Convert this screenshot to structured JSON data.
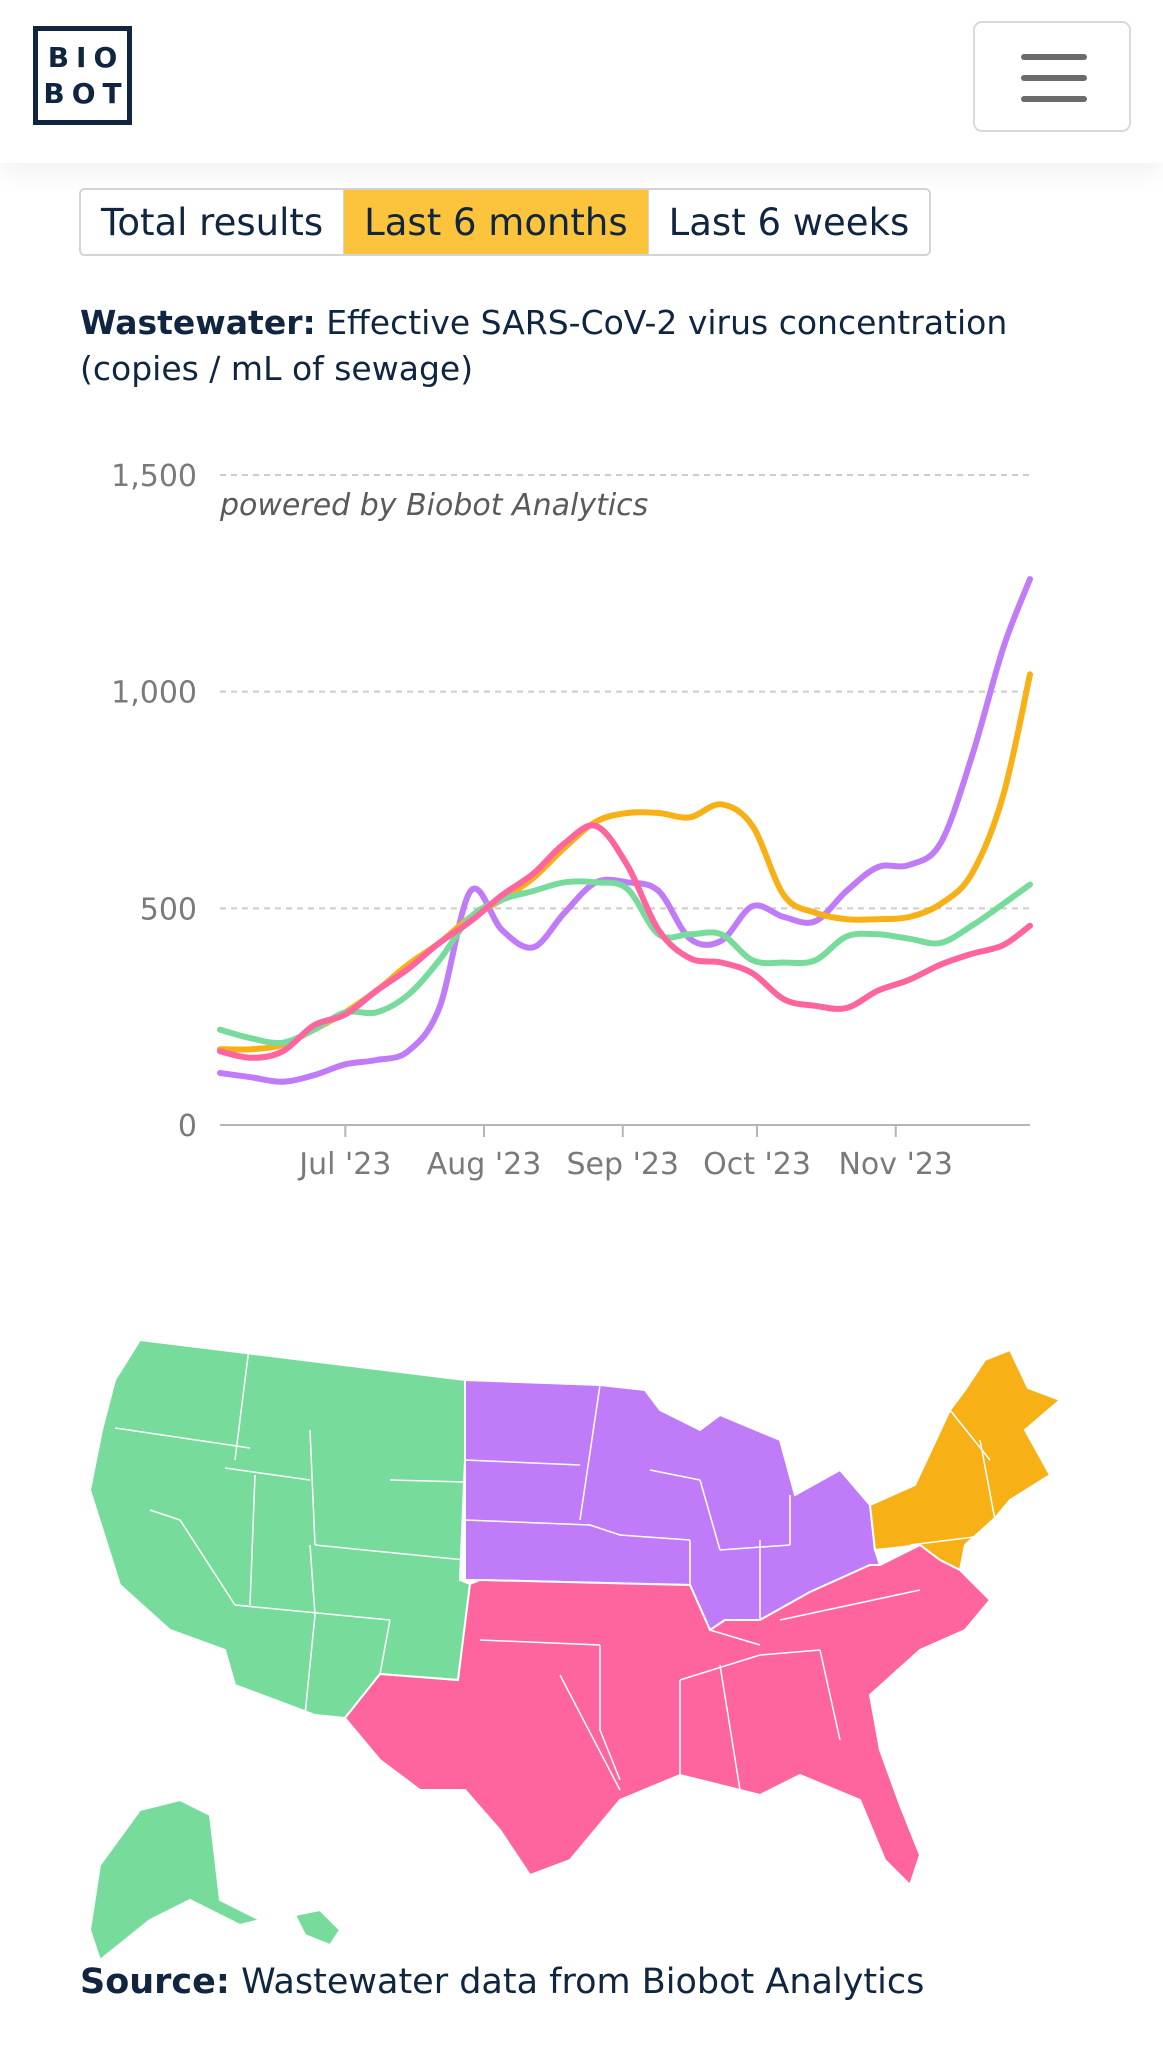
{
  "header": {
    "logo_line1": "BIO",
    "logo_line2": "BOT",
    "menu_icon": "hamburger-menu-icon"
  },
  "tabs": [
    {
      "label": "Total results",
      "active": false
    },
    {
      "label": "Last 6 months",
      "active": true
    },
    {
      "label": "Last 6 weeks",
      "active": false
    }
  ],
  "title": {
    "bold": "Wastewater:",
    "text": "Effective SARS-CoV-2 virus concentration (copies / mL of sewage)"
  },
  "watermark": "powered by Biobot Analytics",
  "chart_data": {
    "type": "line",
    "title": "Wastewater: Effective SARS-CoV-2 virus concentration (copies / mL of sewage)",
    "xlabel": "",
    "ylabel": "",
    "x_ticks": [
      "Jul '23",
      "Aug '23",
      "Sep '23",
      "Oct '23",
      "Nov '23"
    ],
    "x_tick_dates": [
      "2023-07-01",
      "2023-08-01",
      "2023-09-01",
      "2023-10-01",
      "2023-11-01"
    ],
    "xlim": [
      "2023-06-03",
      "2023-12-01"
    ],
    "y_ticks": [
      0,
      500,
      1000,
      1500
    ],
    "y_tick_labels": [
      "0",
      "500",
      "1,000",
      "1,500"
    ],
    "ylim": [
      0,
      1500
    ],
    "grid": "horizontal-dashed",
    "x": [
      "2023-06-03",
      "2023-06-10",
      "2023-06-17",
      "2023-06-24",
      "2023-07-01",
      "2023-07-08",
      "2023-07-15",
      "2023-07-22",
      "2023-07-29",
      "2023-08-05",
      "2023-08-12",
      "2023-08-19",
      "2023-08-26",
      "2023-09-02",
      "2023-09-09",
      "2023-09-16",
      "2023-09-23",
      "2023-09-30",
      "2023-10-07",
      "2023-10-14",
      "2023-10-21",
      "2023-10-28",
      "2023-11-04",
      "2023-11-11",
      "2023-11-18",
      "2023-11-25",
      "2023-12-01"
    ],
    "series": [
      {
        "color": "#c07bf9",
        "values": [
          120,
          110,
          100,
          115,
          140,
          150,
          170,
          270,
          540,
          450,
          410,
          490,
          560,
          560,
          540,
          430,
          425,
          505,
          480,
          470,
          540,
          595,
          600,
          650,
          850,
          1100,
          1260
        ]
      },
      {
        "color": "#f7b016",
        "values": [
          175,
          175,
          185,
          220,
          260,
          310,
          370,
          420,
          480,
          520,
          570,
          640,
          700,
          720,
          720,
          710,
          740,
          690,
          530,
          490,
          475,
          475,
          480,
          510,
          580,
          760,
          1040
        ]
      },
      {
        "color": "#77dc9b",
        "values": [
          220,
          200,
          190,
          220,
          260,
          260,
          300,
          380,
          480,
          520,
          540,
          560,
          560,
          545,
          440,
          440,
          440,
          380,
          375,
          380,
          435,
          440,
          430,
          420,
          460,
          510,
          555
        ]
      },
      {
        "color": "#fe649d",
        "values": [
          170,
          155,
          170,
          230,
          255,
          310,
          360,
          420,
          470,
          530,
          580,
          650,
          690,
          600,
          450,
          385,
          375,
          350,
          290,
          275,
          270,
          310,
          335,
          370,
          395,
          415,
          460
        ]
      }
    ]
  },
  "map": {
    "regions": [
      {
        "color": "#77dc9b"
      },
      {
        "color": "#c07bf9"
      },
      {
        "color": "#f7b016"
      },
      {
        "color": "#fe649d"
      }
    ]
  },
  "source": {
    "bold": "Source:",
    "text": "Wastewater data from Biobot Analytics"
  }
}
